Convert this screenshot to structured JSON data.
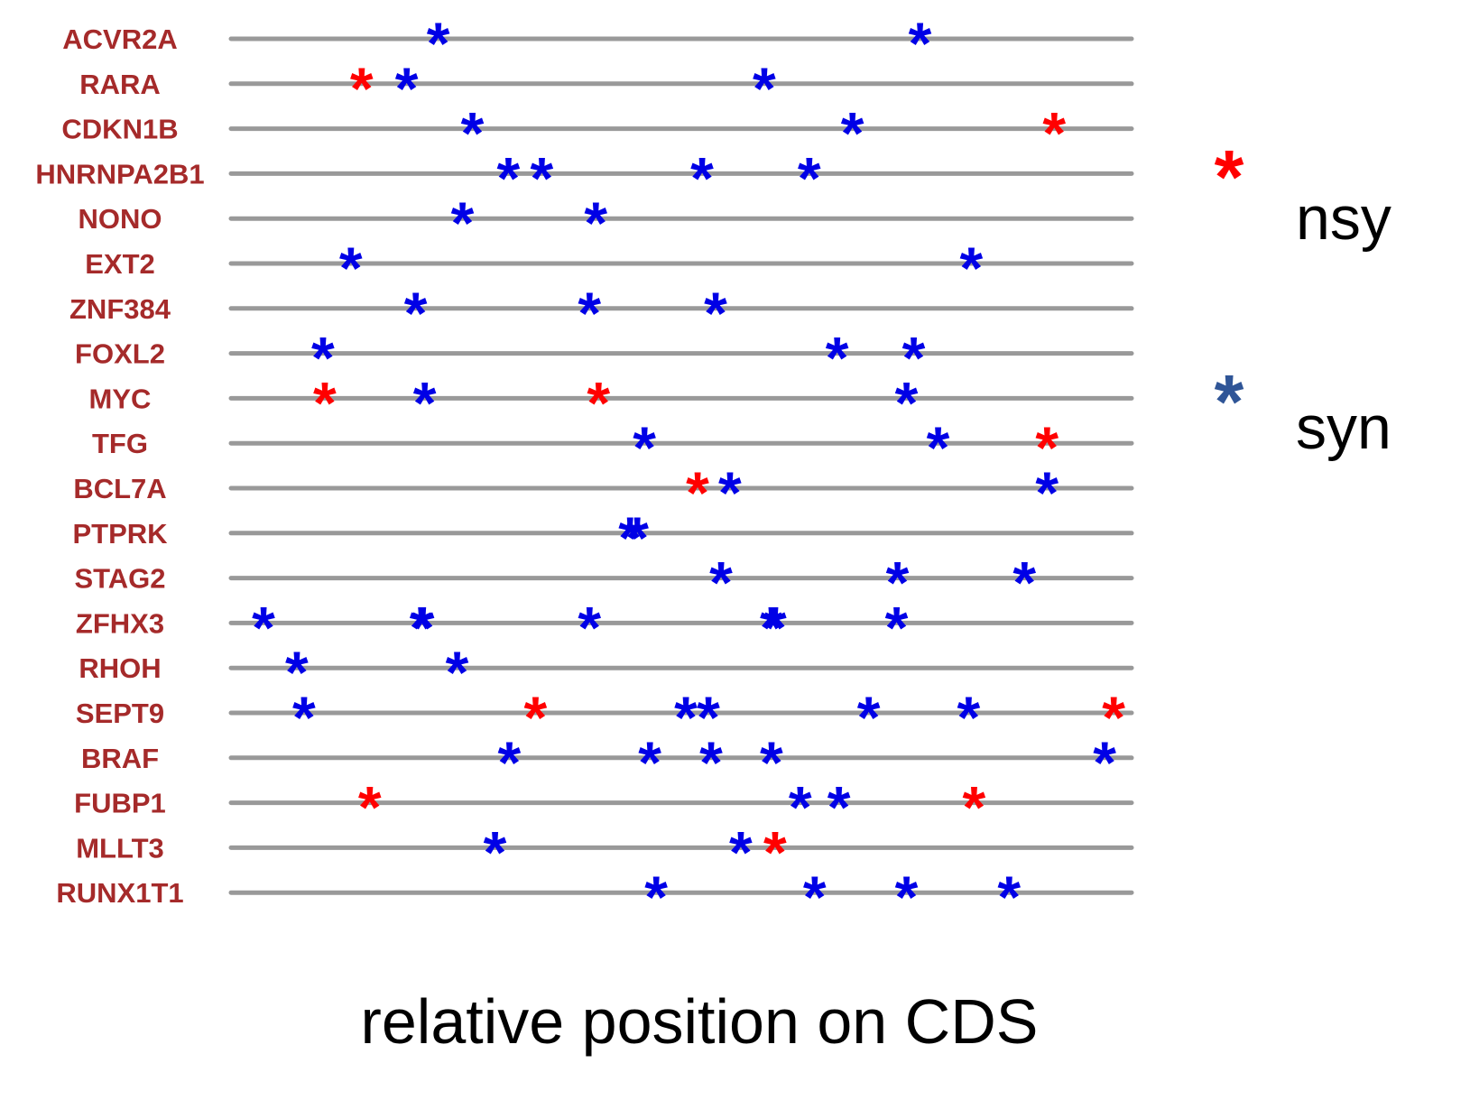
{
  "colors": {
    "nonsynonymous": "#ff0000",
    "synonymous": "#0000e6",
    "legend_synonymous": "#2f5597",
    "gene_label": "#a52a2a",
    "track": "#999999",
    "text": "#000000"
  },
  "legend": {
    "placement": "right",
    "items": [
      {
        "key": "nonsynonymous",
        "label": "nsy"
      },
      {
        "key": "synonymous",
        "label": "syn"
      }
    ]
  },
  "chart_data": {
    "type": "scatter",
    "title": "",
    "xlabel": "relative position on CDS",
    "ylabel": "",
    "xlim": [
      0,
      1
    ],
    "grid": false,
    "marker": "*",
    "genes": [
      {
        "name": "ACVR2A",
        "syn": [
          0.23,
          0.765
        ],
        "nsy": []
      },
      {
        "name": "RARA",
        "syn": [
          0.195,
          0.592
        ],
        "nsy": [
          0.145
        ]
      },
      {
        "name": "CDKN1B",
        "syn": [
          0.268,
          0.69
        ],
        "nsy": [
          0.914
        ]
      },
      {
        "name": "HNRNPA2B1",
        "syn": [
          0.308,
          0.345,
          0.523,
          0.642
        ],
        "nsy": []
      },
      {
        "name": "NONO",
        "syn": [
          0.257,
          0.405
        ],
        "nsy": []
      },
      {
        "name": "EXT2",
        "syn": [
          0.133,
          0.822
        ],
        "nsy": []
      },
      {
        "name": "ZNF384",
        "syn": [
          0.205,
          0.398,
          0.538
        ],
        "nsy": []
      },
      {
        "name": "FOXL2",
        "syn": [
          0.102,
          0.673,
          0.758
        ],
        "nsy": []
      },
      {
        "name": "MYC",
        "syn": [
          0.215,
          0.75
        ],
        "nsy": [
          0.104,
          0.408
        ]
      },
      {
        "name": "TFG",
        "syn": [
          0.459,
          0.785
        ],
        "nsy": [
          0.906
        ]
      },
      {
        "name": "BCL7A",
        "syn": [
          0.554,
          0.906
        ],
        "nsy": [
          0.518
        ]
      },
      {
        "name": "PTPRK",
        "syn": [
          0.443,
          0.451
        ],
        "nsy": []
      },
      {
        "name": "STAG2",
        "syn": [
          0.544,
          0.74,
          0.881
        ],
        "nsy": []
      },
      {
        "name": "ZFHX3",
        "syn": [
          0.036,
          0.211,
          0.213,
          0.398,
          0.6,
          0.604,
          0.739
        ],
        "nsy": []
      },
      {
        "name": "RHOH",
        "syn": [
          0.073,
          0.251
        ],
        "nsy": []
      },
      {
        "name": "SEPT9",
        "syn": [
          0.081,
          0.505,
          0.53,
          0.708,
          0.819
        ],
        "nsy": [
          0.338,
          0.98
        ]
      },
      {
        "name": "BRAF",
        "syn": [
          0.309,
          0.465,
          0.533,
          0.6,
          0.97
        ],
        "nsy": []
      },
      {
        "name": "FUBP1",
        "syn": [
          0.632,
          0.675
        ],
        "nsy": [
          0.154,
          0.825
        ]
      },
      {
        "name": "MLLT3",
        "syn": [
          0.293,
          0.566
        ],
        "nsy": [
          0.604
        ]
      },
      {
        "name": "RUNX1T1",
        "syn": [
          0.472,
          0.648,
          0.75,
          0.864
        ],
        "nsy": []
      }
    ]
  }
}
